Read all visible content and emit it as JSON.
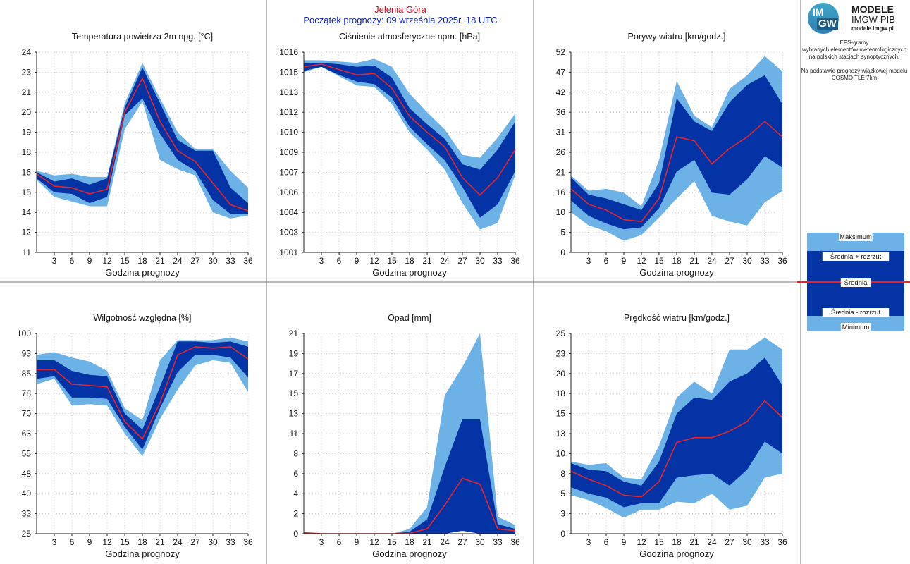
{
  "header": {
    "location": "Jelenia Góra",
    "start": "Początek prognozy: 09 września 2025r. 18 UTC"
  },
  "logo": {
    "line1": "MODELE",
    "line2": "IMGW-PIB",
    "line3": "modele.imgw.pl",
    "mark_top": "IM",
    "mark_bottom": "GW"
  },
  "description": {
    "line1": "EPS-gramy",
    "line2": "wybranych elementów meteorologicznych",
    "line3": "na polskich stacjach  synoptycznych.",
    "line4": "Na podstawie prognozy wiązkowej modelu",
    "line5": "COSMO TLE 7km"
  },
  "legend": {
    "max": "Maksimum",
    "mean_plus": "Średnia + rozrzut",
    "mean": "Średnia",
    "mean_minus": "Średnia - rozrzut",
    "min": "Minimum"
  },
  "colors": {
    "light_band": "#6cb2e6",
    "dark_band": "#0433a6",
    "mean_line": "#e3262d",
    "grid": "#b8b8b8",
    "frame": "#777777"
  },
  "chart_data": [
    {
      "type": "area",
      "title": "Temperatura powietrza 2m npg. [°C]",
      "xlabel": "Godzina prognozy",
      "x": [
        0,
        3,
        6,
        9,
        12,
        15,
        18,
        21,
        24,
        27,
        30,
        33,
        36
      ],
      "y_ticks": [
        "11",
        "12",
        "14",
        "15",
        "16",
        "18",
        "19",
        "20",
        "21",
        "23",
        "24"
      ],
      "ylim": [
        11,
        24
      ],
      "min": [
        15.7,
        14.6,
        14.3,
        14.0,
        14.0,
        19.0,
        20.8,
        17.0,
        16.4,
        16.0,
        13.6,
        13.2,
        13.4
      ],
      "mean_minus": [
        15.8,
        14.9,
        14.8,
        14.2,
        14.6,
        19.9,
        21.0,
        18.7,
        17.0,
        16.3,
        14.4,
        13.5,
        13.5
      ],
      "mean": [
        16.1,
        15.3,
        15.2,
        14.8,
        15.1,
        20.1,
        22.3,
        19.5,
        17.6,
        16.9,
        15.5,
        14.1,
        13.7
      ],
      "mean_plus": [
        16.2,
        15.6,
        15.8,
        15.4,
        15.8,
        20.4,
        23.0,
        20.7,
        18.3,
        17.6,
        17.6,
        15.2,
        14.2
      ],
      "max": [
        16.3,
        16.0,
        16.1,
        15.9,
        15.9,
        20.7,
        23.3,
        21.0,
        18.8,
        17.7,
        17.7,
        16.3,
        15.2
      ]
    },
    {
      "type": "area",
      "title": "Ciśnienie atmosferyczne npm. [hPa]",
      "xlabel": "Godzina prognozy",
      "x": [
        0,
        3,
        6,
        9,
        12,
        15,
        18,
        21,
        24,
        27,
        30,
        33,
        36
      ],
      "y_ticks": [
        "1001",
        "1003",
        "1004",
        "1006",
        "1007",
        "1009",
        "1010",
        "1012",
        "1013",
        "1015",
        "1016"
      ],
      "ylim": [
        1001,
        1016
      ],
      "min": [
        1014.5,
        1014.9,
        1014.2,
        1013.5,
        1013.4,
        1012.1,
        1010.0,
        1008.7,
        1007.2,
        1004.7,
        1002.7,
        1003.2,
        1006.8
      ],
      "mean_minus": [
        1014.6,
        1014.9,
        1014.3,
        1013.8,
        1013.6,
        1012.6,
        1010.4,
        1009.1,
        1007.9,
        1005.9,
        1003.6,
        1004.6,
        1007.1
      ],
      "mean": [
        1014.9,
        1015.1,
        1014.7,
        1014.3,
        1014.4,
        1013.3,
        1011.2,
        1010.0,
        1008.9,
        1006.6,
        1005.3,
        1006.6,
        1008.7
      ],
      "mean_plus": [
        1015.2,
        1015.2,
        1015.1,
        1014.9,
        1015.0,
        1014.1,
        1011.8,
        1010.6,
        1009.5,
        1007.6,
        1007.2,
        1008.7,
        1010.8
      ],
      "max": [
        1015.4,
        1015.4,
        1015.3,
        1015.2,
        1015.5,
        1014.9,
        1012.9,
        1011.5,
        1010.2,
        1008.3,
        1008.1,
        1009.6,
        1011.4
      ]
    },
    {
      "type": "area",
      "title": "Porywy wiatru [km/godz.]",
      "xlabel": "Godzina prognozy",
      "x": [
        0,
        3,
        6,
        9,
        12,
        15,
        18,
        21,
        24,
        27,
        30,
        33,
        36
      ],
      "y_ticks": [
        "0",
        "5",
        "10",
        "16",
        "21",
        "26",
        "31",
        "36",
        "42",
        "47",
        "52"
      ],
      "ylim": [
        0,
        52
      ],
      "min": [
        10.5,
        7.0,
        5.5,
        3.0,
        4.5,
        9.0,
        14.0,
        18.5,
        9.5,
        8.0,
        7.0,
        13.0,
        16.0
      ],
      "mean_minus": [
        13.5,
        9.5,
        7.5,
        6.0,
        6.5,
        11.5,
        21.0,
        24.0,
        15.5,
        15.0,
        19.0,
        25.0,
        22.0
      ],
      "mean": [
        16.5,
        12.5,
        11.0,
        8.5,
        8.0,
        14.0,
        30.0,
        29.0,
        23.0,
        27.0,
        30.0,
        34.0,
        30.0
      ],
      "mean_plus": [
        19.5,
        15.0,
        14.0,
        12.5,
        11.0,
        18.0,
        40.0,
        34.0,
        31.5,
        39.0,
        43.5,
        46.0,
        38.5
      ],
      "max": [
        20.0,
        16.0,
        16.5,
        15.5,
        12.0,
        24.0,
        44.5,
        35.5,
        32.5,
        42.5,
        46.0,
        51.0,
        47.0
      ]
    },
    {
      "type": "area",
      "title": "Wilgotność względna [%]",
      "xlabel": "Godzina prognozy",
      "x": [
        0,
        3,
        6,
        9,
        12,
        15,
        18,
        21,
        24,
        27,
        30,
        33,
        36
      ],
      "y_ticks": [
        "25",
        "33",
        "40",
        "48",
        "55",
        "63",
        "70",
        "78",
        "85",
        "93",
        "100"
      ],
      "ylim": [
        25,
        100
      ],
      "min": [
        81.0,
        83.0,
        73.0,
        73.5,
        73.0,
        62.5,
        54.0,
        68.0,
        79.0,
        88.0,
        90.0,
        89.0,
        78.0
      ],
      "mean_minus": [
        83.0,
        84.0,
        76.0,
        76.0,
        75.5,
        65.0,
        56.5,
        72.0,
        85.5,
        92.0,
        92.0,
        91.0,
        83.5
      ],
      "mean": [
        86.5,
        86.5,
        81.0,
        80.5,
        80.0,
        67.0,
        60.5,
        74.0,
        92.0,
        95.0,
        94.5,
        95.0,
        90.5
      ],
      "mean_plus": [
        90.0,
        90.0,
        86.0,
        84.5,
        84.0,
        70.0,
        64.0,
        80.0,
        97.0,
        97.0,
        96.5,
        97.0,
        95.0
      ],
      "max": [
        92.0,
        93.0,
        91.0,
        89.5,
        86.0,
        72.0,
        67.5,
        90.0,
        97.5,
        97.5,
        97.5,
        98.5,
        97.0
      ]
    },
    {
      "type": "area",
      "title": "Opad [mm]",
      "xlabel": "Godzina prognozy",
      "x": [
        0,
        3,
        6,
        9,
        12,
        15,
        18,
        21,
        24,
        27,
        30,
        33,
        36
      ],
      "y_ticks": [
        "0",
        "2",
        "4",
        "6",
        "8",
        "11",
        "13",
        "15",
        "17",
        "19",
        "21"
      ],
      "ylim": [
        0,
        21
      ],
      "min": [
        0,
        0,
        0,
        0,
        0,
        0,
        0,
        0,
        0,
        0.3,
        0,
        0,
        0
      ],
      "mean_minus": [
        0,
        0,
        0,
        0,
        0,
        0,
        0,
        0,
        0,
        0.3,
        0,
        0,
        0
      ],
      "mean": [
        0.1,
        0,
        0,
        0,
        0,
        0,
        0.05,
        0.5,
        3.0,
        5.8,
        5.2,
        0.5,
        0.3
      ],
      "mean_plus": [
        0.1,
        0,
        0,
        0,
        0,
        0,
        0.2,
        1.5,
        7.0,
        12.0,
        12.0,
        1.0,
        0.5
      ],
      "max": [
        0.1,
        0,
        0,
        0,
        0,
        0,
        0.5,
        2.8,
        14.5,
        17.5,
        21.0,
        1.8,
        0.9
      ]
    },
    {
      "type": "area",
      "title": "Prędkość wiatru [km/godz.]",
      "xlabel": "Godzina prognozy",
      "x": [
        0,
        3,
        6,
        9,
        12,
        15,
        18,
        21,
        24,
        27,
        30,
        33,
        36
      ],
      "y_ticks": [
        "0",
        "3",
        "5",
        "8",
        "10",
        "13",
        "15",
        "18",
        "20",
        "23",
        "25"
      ],
      "ylim": [
        0,
        25
      ],
      "min": [
        4.8,
        4.2,
        3.2,
        2.0,
        3.0,
        3.0,
        4.0,
        3.8,
        5.0,
        3.0,
        3.5,
        7.0,
        7.5
      ],
      "mean_minus": [
        5.8,
        5.0,
        4.5,
        3.3,
        3.8,
        3.8,
        7.0,
        7.3,
        7.5,
        6.0,
        8.0,
        11.5,
        10.0
      ],
      "mean": [
        7.8,
        6.8,
        6.0,
        4.8,
        4.6,
        6.5,
        11.4,
        12.0,
        12.0,
        12.8,
        14.0,
        16.6,
        14.5
      ],
      "mean_plus": [
        8.8,
        8.0,
        7.8,
        6.5,
        6.0,
        9.0,
        15.0,
        17.0,
        16.7,
        19.0,
        20.0,
        22.0,
        18.5
      ],
      "max": [
        9.0,
        8.6,
        8.8,
        7.0,
        6.8,
        11.0,
        17.0,
        19.0,
        17.5,
        23.0,
        23.0,
        24.5,
        23.0
      ]
    }
  ]
}
